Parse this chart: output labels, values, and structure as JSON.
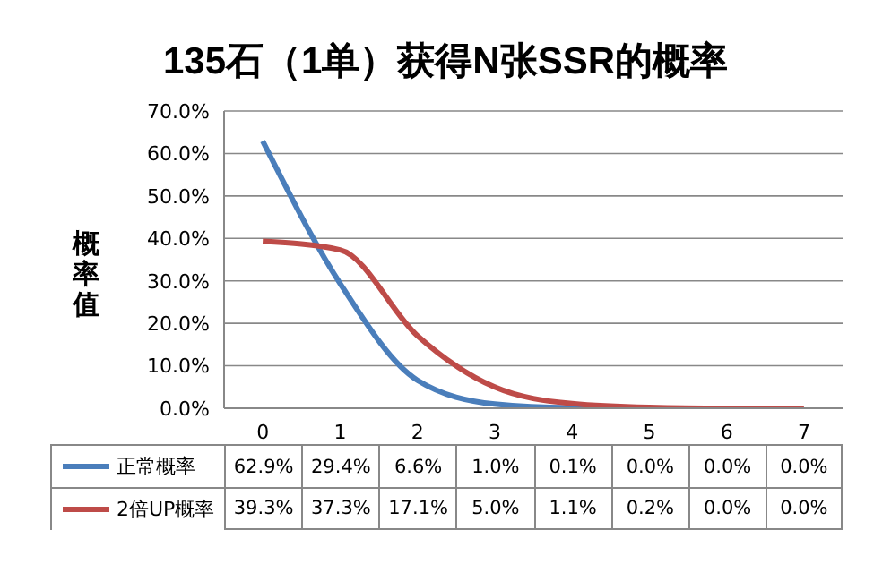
{
  "chart_data": {
    "type": "line",
    "title": "135石（1单）获得N张SSR的概率",
    "ylabel": "概率值",
    "categories": [
      "0",
      "1",
      "2",
      "3",
      "4",
      "5",
      "6",
      "7"
    ],
    "series": [
      {
        "name": "正常概率",
        "color": "#4a7ebb",
        "values": [
          62.9,
          29.4,
          6.6,
          1.0,
          0.1,
          0.0,
          null,
          null
        ],
        "value_labels": [
          "62.9%",
          "29.4%",
          "6.6%",
          "1.0%",
          "0.1%",
          "0.0%",
          "0.0%",
          "0.0%"
        ]
      },
      {
        "name": "2倍UP概率",
        "color": "#be4b48",
        "values": [
          39.3,
          37.3,
          17.1,
          5.0,
          1.1,
          0.2,
          0.0,
          0.0
        ],
        "value_labels": [
          "39.3%",
          "37.3%",
          "17.1%",
          "5.0%",
          "1.1%",
          "0.2%",
          "0.0%",
          "0.0%"
        ]
      }
    ],
    "ylim": [
      0,
      70
    ],
    "yticks": [
      {
        "value": 0,
        "label": "0.0%"
      },
      {
        "value": 10,
        "label": "10.0%"
      },
      {
        "value": 20,
        "label": "20.0%"
      },
      {
        "value": 30,
        "label": "30.0%"
      },
      {
        "value": 40,
        "label": "40.0%"
      },
      {
        "value": 50,
        "label": "50.0%"
      },
      {
        "value": 60,
        "label": "60.0%"
      },
      {
        "value": 70,
        "label": "70.0%"
      }
    ],
    "grid": "y",
    "legend": "bottom"
  }
}
